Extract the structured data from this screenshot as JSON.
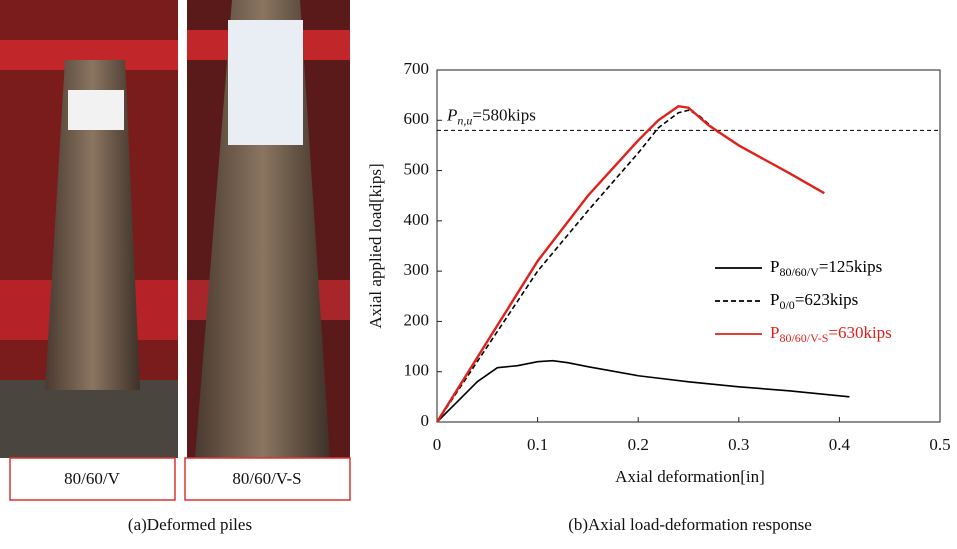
{
  "photos": [
    {
      "label": "80/60/V"
    },
    {
      "label": "80/60/V-S"
    }
  ],
  "captions": [
    "(a)Deformed piles",
    "(b)Axial load-deformation response"
  ],
  "chart_data": {
    "type": "line",
    "x_label": "Axial deformation[in]",
    "y_label": "Axial applied load[kips]",
    "xlim": [
      0,
      0.5
    ],
    "xticks": [
      0,
      0.1,
      0.2,
      0.3,
      0.4,
      0.5
    ],
    "ylim": [
      0,
      700
    ],
    "yticks": [
      0,
      100,
      200,
      300,
      400,
      500,
      600,
      700
    ],
    "grid": false,
    "legend_position": "right",
    "reference_line": {
      "value": 580,
      "label_main": "P",
      "label_sub": "n,u",
      "label_suffix": "=580kips",
      "color": "#000000",
      "dash": true
    },
    "series": [
      {
        "name": "P",
        "name_sub": "80/60/V",
        "name_suffix": "=125kips",
        "color": "#000000",
        "dash": false,
        "x": [
          0,
          0.02,
          0.04,
          0.06,
          0.08,
          0.1,
          0.115,
          0.13,
          0.15,
          0.2,
          0.25,
          0.3,
          0.35,
          0.4,
          0.41
        ],
        "values": [
          0,
          40,
          80,
          108,
          112,
          120,
          122,
          118,
          110,
          92,
          80,
          70,
          62,
          52,
          50
        ]
      },
      {
        "name": "P",
        "name_sub": "0/0",
        "name_suffix": "=623kips",
        "color": "#000000",
        "dash": true,
        "x": [
          0,
          0.05,
          0.1,
          0.15,
          0.2,
          0.22,
          0.24,
          0.25,
          0.26,
          0.28
        ],
        "values": [
          0,
          150,
          300,
          420,
          535,
          585,
          615,
          620,
          610,
          575
        ]
      },
      {
        "name": "P",
        "name_sub": "80/60/V-S",
        "name_suffix": "=630kips",
        "color": "#e0201b",
        "dash": false,
        "x": [
          0,
          0.05,
          0.1,
          0.15,
          0.2,
          0.22,
          0.24,
          0.25,
          0.27,
          0.3,
          0.35,
          0.385
        ],
        "values": [
          0,
          160,
          320,
          450,
          560,
          600,
          628,
          625,
          590,
          550,
          495,
          455
        ]
      }
    ]
  }
}
